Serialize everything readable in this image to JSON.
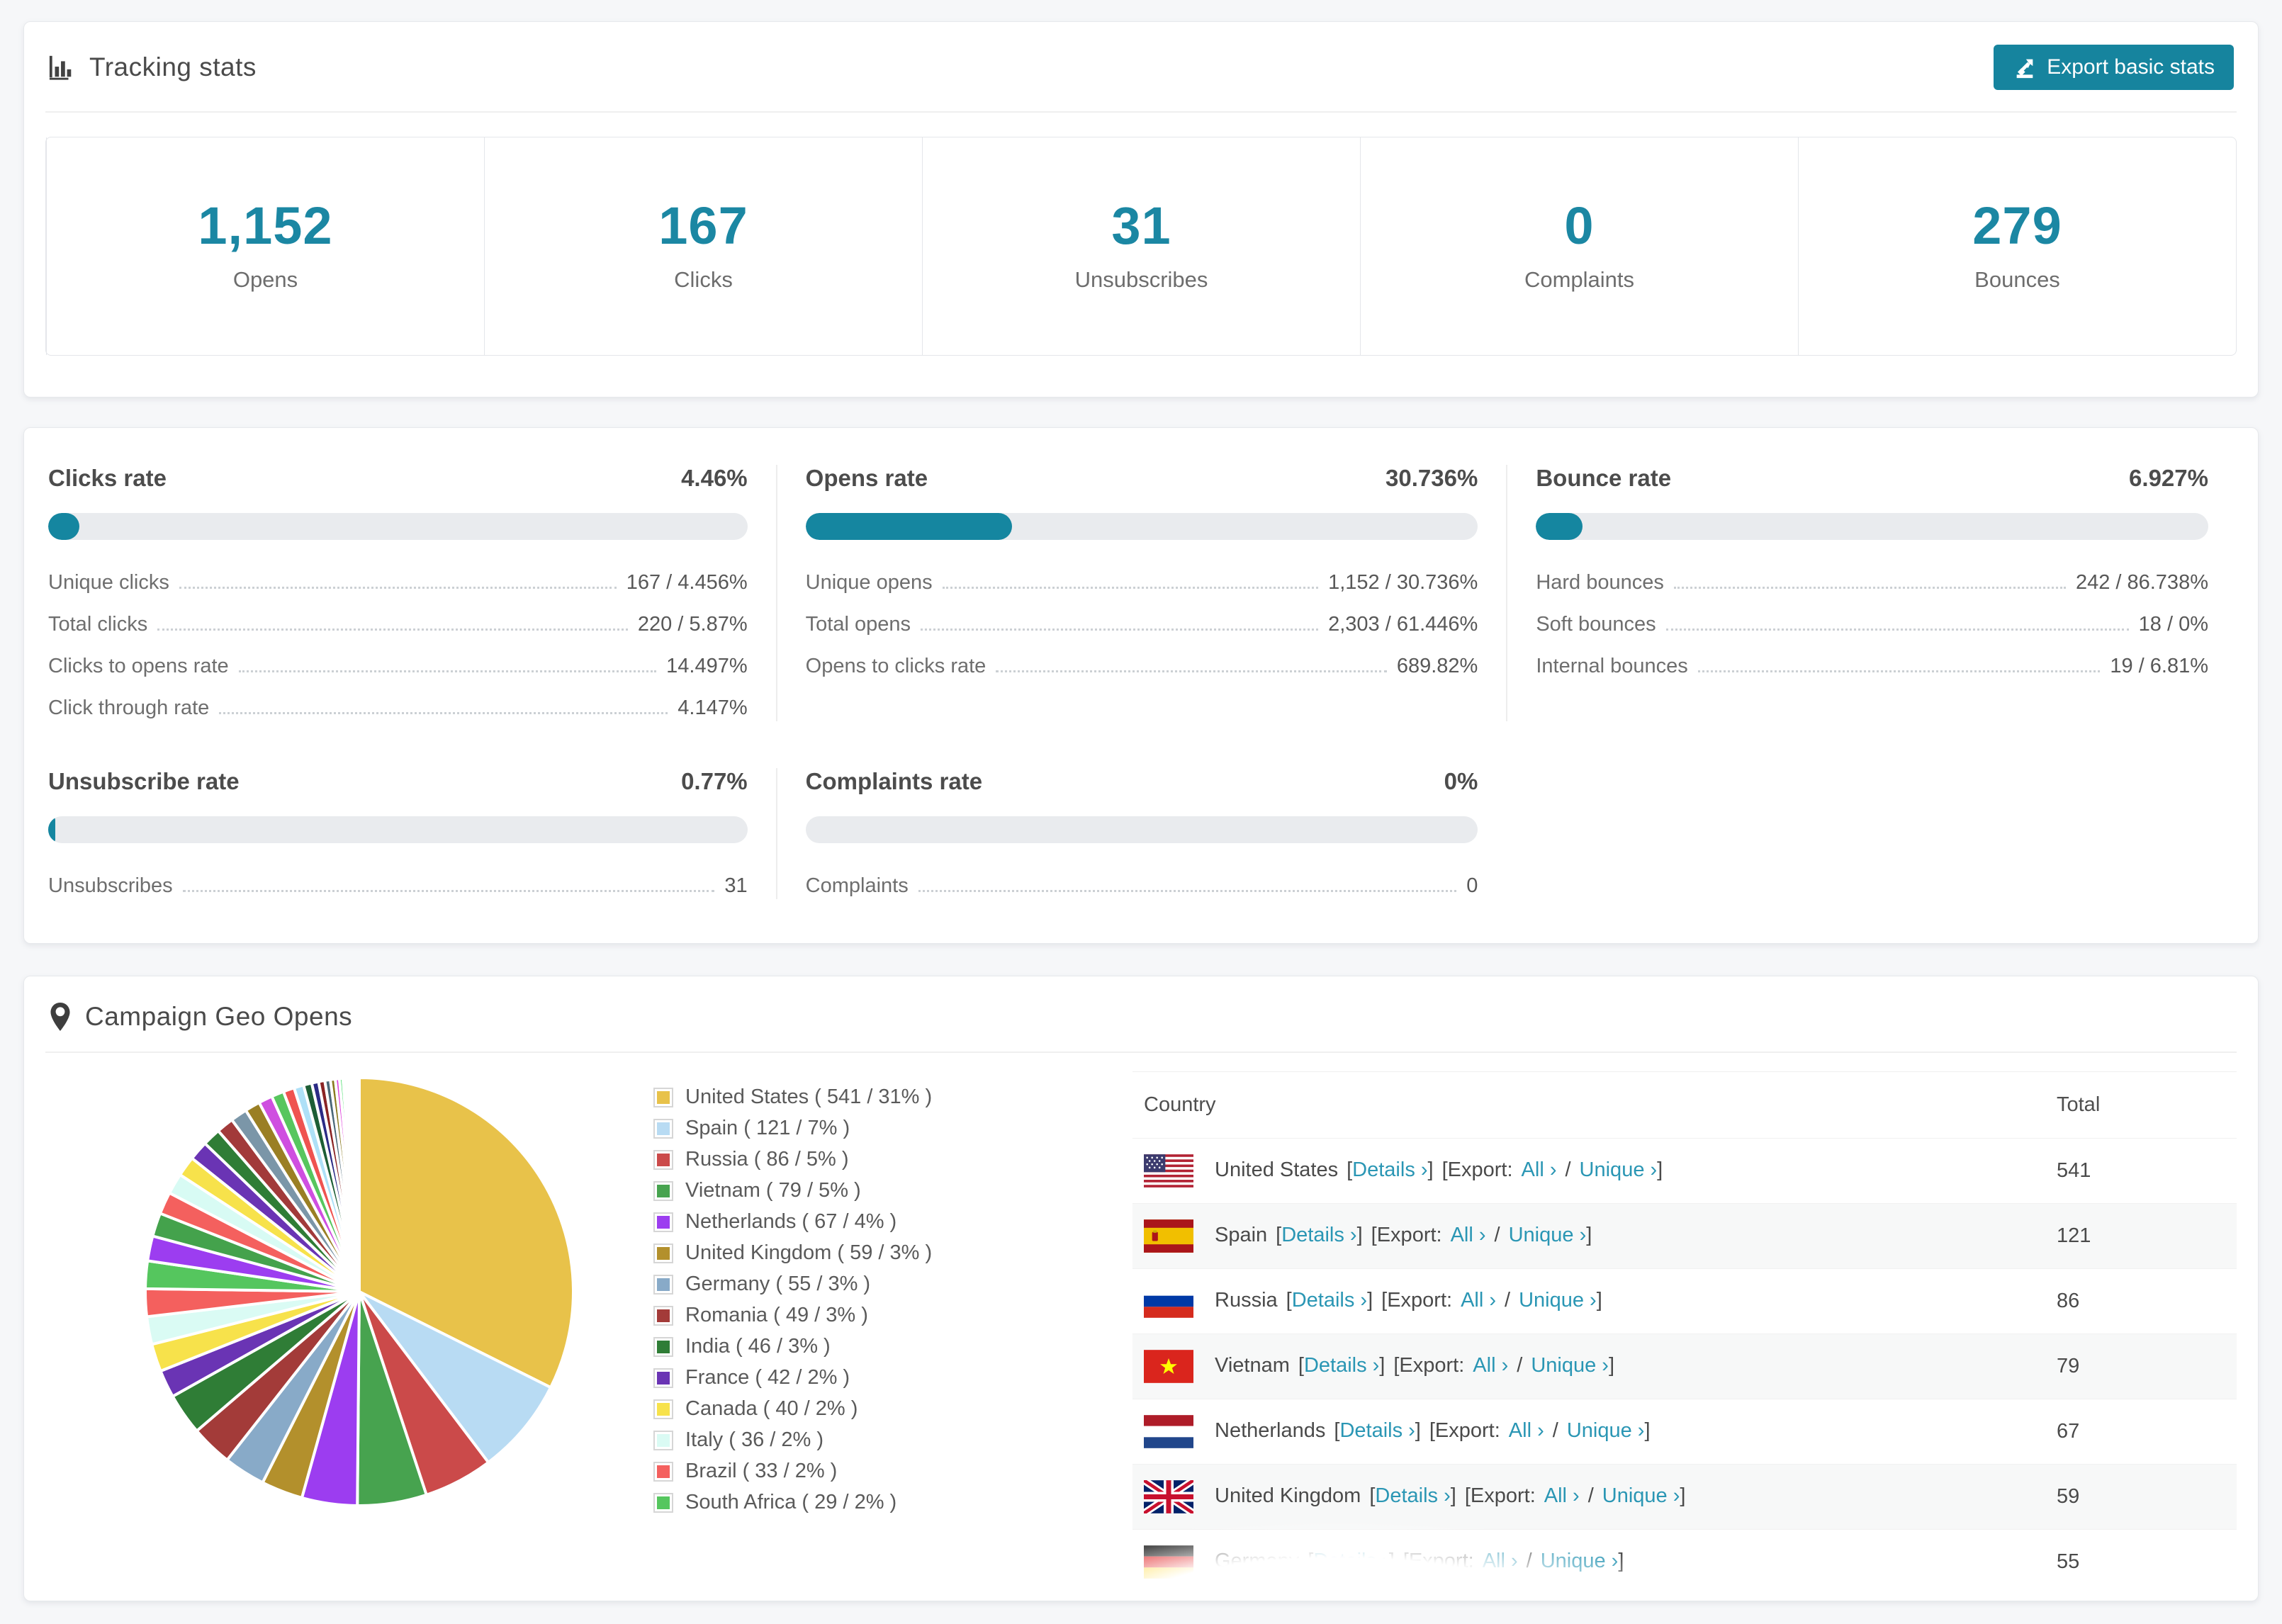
{
  "colors": {
    "accent": "#1b87a3",
    "button": "#16849e",
    "link": "#2a96b4",
    "progress_track": "#e9ebee",
    "progress_fill": "#1586a0"
  },
  "header": {
    "title": "Tracking stats",
    "export_label": "Export basic stats"
  },
  "summary_stats": [
    {
      "value": "1,152",
      "label": "Opens"
    },
    {
      "value": "167",
      "label": "Clicks"
    },
    {
      "value": "31",
      "label": "Unsubscribes"
    },
    {
      "value": "0",
      "label": "Complaints"
    },
    {
      "value": "279",
      "label": "Bounces"
    }
  ],
  "rates": {
    "panels": [
      {
        "title": "Clicks rate",
        "value": "4.46%",
        "percent": 4.46,
        "rows": [
          {
            "label": "Unique clicks",
            "value": "167 / 4.456%"
          },
          {
            "label": "Total clicks",
            "value": "220 / 5.87%"
          },
          {
            "label": "Clicks to opens rate",
            "value": "14.497%"
          },
          {
            "label": "Click through rate",
            "value": "4.147%"
          }
        ]
      },
      {
        "title": "Opens rate",
        "value": "30.736%",
        "percent": 30.736,
        "rows": [
          {
            "label": "Unique opens",
            "value": "1,152 / 30.736%"
          },
          {
            "label": "Total opens",
            "value": "2,303 / 61.446%"
          },
          {
            "label": "Opens to clicks rate",
            "value": "689.82%"
          }
        ]
      },
      {
        "title": "Bounce rate",
        "value": "6.927%",
        "percent": 6.927,
        "rows": [
          {
            "label": "Hard bounces",
            "value": "242 / 86.738%"
          },
          {
            "label": "Soft bounces",
            "value": "18 / 0%"
          },
          {
            "label": "Internal bounces",
            "value": "19 / 6.81%"
          }
        ]
      },
      {
        "title": "Unsubscribe rate",
        "value": "0.77%",
        "percent": 0.77,
        "rows": [
          {
            "label": "Unsubscribes",
            "value": "31"
          }
        ]
      },
      {
        "title": "Complaints rate",
        "value": "0%",
        "percent": 0,
        "rows": [
          {
            "label": "Complaints",
            "value": "0"
          }
        ]
      }
    ]
  },
  "geo": {
    "title": "Campaign Geo Opens",
    "chart_data": {
      "type": "pie",
      "title": "Campaign Geo Opens",
      "legend_position": "right",
      "slices": [
        {
          "label": "United States",
          "value": 541,
          "pct": 31,
          "color": "#e8c24a"
        },
        {
          "label": "Spain",
          "value": 121,
          "pct": 7,
          "color": "#b8dbf3"
        },
        {
          "label": "Russia",
          "value": 86,
          "pct": 5,
          "color": "#cb4a4a"
        },
        {
          "label": "Vietnam",
          "value": 79,
          "pct": 5,
          "color": "#47a34f"
        },
        {
          "label": "Netherlands",
          "value": 67,
          "pct": 4,
          "color": "#9c3df0"
        },
        {
          "label": "United Kingdom",
          "value": 59,
          "pct": 3,
          "color": "#b3902c"
        },
        {
          "label": "Germany",
          "value": 55,
          "pct": 3,
          "color": "#88aac8"
        },
        {
          "label": "Romania",
          "value": 49,
          "pct": 3,
          "color": "#a33b39"
        },
        {
          "label": "India",
          "value": 46,
          "pct": 3,
          "color": "#2f7d36"
        },
        {
          "label": "France",
          "value": 42,
          "pct": 2,
          "color": "#6a34b4"
        },
        {
          "label": "Canada",
          "value": 40,
          "pct": 2,
          "color": "#f7e24b"
        },
        {
          "label": "Italy",
          "value": 36,
          "pct": 2,
          "color": "#dafbf4"
        },
        {
          "label": "Brazil",
          "value": 33,
          "pct": 2,
          "color": "#f4605e"
        },
        {
          "label": "South Africa",
          "value": 29,
          "pct": 2,
          "color": "#55c65e"
        }
      ],
      "tail_values": [
        1.8,
        1.7,
        1.6,
        1.5,
        1.45,
        1.4,
        1.3,
        1.25,
        1.2,
        1.1,
        1.0,
        0.9,
        0.8,
        0.7,
        0.6,
        0.5,
        0.45,
        0.4,
        0.35,
        0.3,
        0.25,
        0.2,
        0.18,
        0.15,
        0.12,
        0.1,
        0.08,
        0.07,
        0.06,
        0.05,
        0.04,
        0.03,
        0.03,
        0.02,
        0.02,
        0.02
      ],
      "tail_colors": [
        "#9c3df0",
        "#44a24c",
        "#f4605e",
        "#d8fbf4",
        "#f7e24b",
        "#6a34b4",
        "#2f7d36",
        "#a23a3a",
        "#7b96a8",
        "#9a7f24",
        "#cf4fe0",
        "#57c65e",
        "#ef5350",
        "#aee0f7",
        "#1d5e35",
        "#2b2b85",
        "#8a2424",
        "#4a6878",
        "#8a7a20",
        "#e048dd",
        "#47dd6b",
        "#ee5555",
        "#f2e052",
        "#cf3434",
        "#e8913f",
        "#caa41c",
        "#8fc0ea",
        "#2fa246",
        "#7433cc",
        "#c8447f",
        "#3b3b90",
        "#156d62",
        "#b5532f",
        "#6fd3c2",
        "#d4c12e",
        "#9e9e3a"
      ]
    },
    "table": {
      "columns": [
        "Country",
        "Total"
      ],
      "links": {
        "details": "Details ›",
        "export_label": "Export:",
        "all": "All ›",
        "unique": "Unique ›"
      },
      "punct": {
        "open": "[",
        "close": "]",
        "slash": "/"
      },
      "rows": [
        {
          "flag": "us",
          "country": "United States",
          "total": "541"
        },
        {
          "flag": "es",
          "country": "Spain",
          "total": "121"
        },
        {
          "flag": "ru",
          "country": "Russia",
          "total": "86"
        },
        {
          "flag": "vn",
          "country": "Vietnam",
          "total": "79"
        },
        {
          "flag": "nl",
          "country": "Netherlands",
          "total": "67"
        },
        {
          "flag": "gb",
          "country": "United Kingdom",
          "total": "59"
        },
        {
          "flag": "de",
          "country": "Germany",
          "total": "55"
        }
      ]
    }
  }
}
